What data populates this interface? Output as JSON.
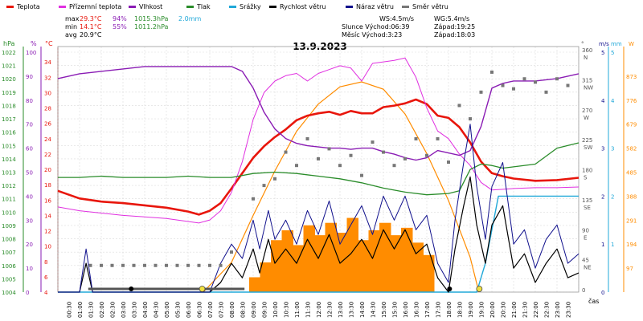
{
  "chart_data": {
    "type": "line",
    "title": "13.9.2023",
    "xlabel": "čas",
    "legend": [
      {
        "name": "Teplota",
        "color": "#e8160c"
      },
      {
        "name": "Přízemní teplota",
        "color": "#e030e0"
      },
      {
        "name": "Vlhkost",
        "color": "#8a1cb4"
      },
      {
        "name": "Tlak",
        "color": "#2a8c2a"
      },
      {
        "name": "Srážky",
        "color": "#20a8d8"
      },
      {
        "name": "Rychlost větru",
        "color": "#000000"
      },
      {
        "name": "Náraz větru",
        "color": "#10108c"
      },
      {
        "name": "Směr větru",
        "color": "#777777"
      }
    ],
    "stats": {
      "max_label": "max",
      "min_label": "min",
      "avg_label": "avg",
      "max_temp": "29.3°C",
      "max_hum": "94%",
      "max_press": "1015.3hPa",
      "max_rain": "2.0mm",
      "min_temp": "14.1°C",
      "min_hum": "55%",
      "min_press": "1011.2hPa",
      "avg_temp": "20.9°C"
    },
    "astro": {
      "ws": "WS:4.5m/s",
      "wg": "WG:5.4m/s",
      "sun_rise": "Slunce Východ:06:39",
      "sun_set": "Západ:19:25",
      "moon_rise": "Měsíc Východ:3:23",
      "moon_set": "Západ:18:03"
    },
    "axes": {
      "hpa": {
        "unit": "hPa",
        "ticks": [
          "1022",
          "1021",
          "1020",
          "1019",
          "1018",
          "1017",
          "1016",
          "1015",
          "1014",
          "1013",
          "1012",
          "1011",
          "1010",
          "1009",
          "1008",
          "1007",
          "1006",
          "1005",
          "1004"
        ]
      },
      "pct": {
        "unit": "%",
        "ticks": [
          "100",
          "90",
          "80",
          "70",
          "60",
          "50",
          "40",
          "30",
          "20",
          "10",
          "0"
        ]
      },
      "temp": {
        "unit": "°C",
        "range": [
          4,
          36
        ],
        "ticks": [
          "34",
          "32",
          "30",
          "28",
          "26",
          "24",
          "22",
          "20",
          "18",
          "16",
          "14",
          "12",
          "10",
          "8",
          "6",
          "4"
        ]
      },
      "dir": {
        "unit": "°",
        "range": [
          0,
          360
        ],
        "ticks": [
          [
            "360",
            "N"
          ],
          [
            "315",
            "NW"
          ],
          [
            "270",
            "W"
          ],
          [
            "225",
            "SW"
          ],
          [
            "180",
            "S"
          ],
          [
            "135",
            "SE"
          ],
          [
            "90",
            "E"
          ],
          [
            "45",
            "NE"
          ],
          [
            "0",
            ""
          ]
        ]
      },
      "ms": {
        "unit": "m/s",
        "range": [
          0,
          6
        ],
        "ticks": [
          "6",
          "5",
          "4",
          "3",
          "2",
          "1",
          "0"
        ]
      },
      "mm": {
        "unit": "mm",
        "range": [
          0,
          5
        ],
        "ticks": [
          "5",
          "4",
          "3",
          "2",
          "1"
        ]
      },
      "w": {
        "unit": "W",
        "ticks": [
          "873",
          "776",
          "679",
          "582",
          "485",
          "388",
          "291",
          "194",
          "97"
        ]
      },
      "x_range": [
        0,
        24
      ],
      "x_ticks": [
        "00:30",
        "01:00",
        "01:30",
        "02:00",
        "02:30",
        "03:00",
        "03:30",
        "04:00",
        "04:30",
        "05:00",
        "05:30",
        "06:00",
        "06:30",
        "07:00",
        "07:30",
        "08:00",
        "08:30",
        "09:00",
        "09:30",
        "10:00",
        "10:30",
        "11:00",
        "11:30",
        "12:00",
        "12:30",
        "13:00",
        "13:30",
        "14:00",
        "14:30",
        "15:00",
        "15:30",
        "16:00",
        "16:30",
        "17:00",
        "17:30",
        "18:00",
        "18:30",
        "19:00",
        "19:30",
        "20:00",
        "20:30",
        "21:00",
        "21:30",
        "22:00",
        "22:30",
        "23:00",
        "23:30"
      ]
    },
    "series": [
      {
        "name": "Teplota",
        "unit": "°C",
        "x": [
          0,
          1,
          2,
          3,
          4,
          5,
          6,
          6.5,
          7,
          7.5,
          8,
          8.5,
          9,
          9.5,
          10,
          10.5,
          11,
          11.5,
          12,
          12.5,
          13,
          13.5,
          14,
          14.5,
          15,
          15.5,
          16,
          16.5,
          17,
          17.5,
          18,
          18.5,
          19,
          19.5,
          20,
          20.5,
          21,
          22,
          23,
          24
        ],
        "y": [
          17.2,
          16.2,
          15.8,
          15.6,
          15.3,
          15,
          14.5,
          14.1,
          14.6,
          15.6,
          17.5,
          19.5,
          21.5,
          23,
          24.2,
          25.2,
          26.4,
          27,
          27.3,
          27.5,
          27.1,
          27.6,
          27.3,
          27.3,
          28.1,
          28.3,
          28.6,
          29.1,
          28.5,
          27,
          26.7,
          25.5,
          23.5,
          21,
          19.5,
          19.1,
          18.8,
          18.5,
          18.6,
          18.9
        ]
      },
      {
        "name": "Přízemní teplota",
        "unit": "°C",
        "x": [
          0,
          1,
          2,
          3,
          4,
          5,
          6,
          6.5,
          7,
          7.5,
          8,
          8.5,
          9,
          9.5,
          10,
          10.5,
          11,
          11.5,
          12,
          12.5,
          13,
          13.5,
          14,
          14.5,
          15,
          15.5,
          16,
          16.5,
          17,
          17.5,
          18,
          18.5,
          19,
          19.5,
          20,
          20.5,
          21,
          22,
          23,
          24
        ],
        "y": [
          15.1,
          14.6,
          14.3,
          14,
          13.8,
          13.6,
          13.2,
          13,
          13.4,
          14.6,
          17,
          21,
          26.5,
          30,
          31.5,
          32.2,
          32.5,
          31.5,
          32.5,
          33,
          33.5,
          33.2,
          31.5,
          33.8,
          34,
          34.2,
          34.5,
          32,
          28,
          25,
          24,
          22,
          20.5,
          18.3,
          17.3,
          17.4,
          17.5,
          17.6,
          17.6,
          17.7
        ]
      },
      {
        "name": "Vlhkost",
        "unit": "%",
        "x": [
          0,
          1,
          2,
          3,
          4,
          5,
          6,
          6.5,
          7,
          7.5,
          8,
          8.5,
          9,
          9.5,
          10,
          10.5,
          11,
          11.5,
          12,
          12.5,
          13,
          13.5,
          14,
          14.5,
          15,
          15.5,
          16,
          16.5,
          17,
          17.5,
          18,
          18.5,
          19,
          19.5,
          20,
          20.5,
          21,
          22,
          23,
          24
        ],
        "y": [
          89,
          91,
          92,
          93,
          94,
          94,
          94,
          94,
          94,
          94,
          94,
          92,
          85,
          75,
          68,
          64,
          62,
          61,
          60.5,
          60,
          60,
          59.5,
          60,
          60,
          58.5,
          57.5,
          56,
          55,
          56,
          59,
          58,
          57,
          59,
          69,
          85,
          87,
          88,
          88,
          89,
          91
        ]
      },
      {
        "name": "Tlak",
        "unit": "hPa",
        "x": [
          0,
          1,
          2,
          3,
          4,
          5,
          6,
          7,
          8,
          9,
          10,
          11,
          12,
          13,
          14,
          15,
          16,
          17,
          18,
          18.5,
          19,
          19.5,
          20,
          20.5,
          21,
          22,
          23,
          24
        ],
        "y": [
          1012.6,
          1012.6,
          1012.7,
          1012.6,
          1012.6,
          1012.6,
          1012.7,
          1012.6,
          1012.6,
          1012.9,
          1013.0,
          1012.9,
          1012.7,
          1012.5,
          1012.2,
          1011.8,
          1011.5,
          1011.3,
          1011.4,
          1011.6,
          1013.2,
          1013.6,
          1013.5,
          1013.3,
          1013.4,
          1013.6,
          1014.8,
          1015.2
        ]
      },
      {
        "name": "Srážky",
        "unit": "mm",
        "x": [
          0,
          19.3,
          19.7,
          20.0,
          20.3,
          24
        ],
        "y": [
          0,
          0,
          0.6,
          1.3,
          2.0,
          2.0
        ]
      },
      {
        "name": "Rychlost větru",
        "unit": "m/s",
        "x": [
          0,
          1,
          1.3,
          1.6,
          2,
          3,
          4,
          5,
          6,
          7,
          7.5,
          8,
          8.5,
          9,
          9.3,
          9.7,
          10,
          10.5,
          11,
          11.5,
          12,
          12.5,
          13,
          13.5,
          14,
          14.5,
          15,
          15.5,
          16,
          16.5,
          17,
          17.5,
          18,
          18.3,
          18.7,
          19,
          19.3,
          19.7,
          20,
          20.5,
          21,
          21.5,
          22,
          22.5,
          23,
          23.5,
          24
        ],
        "y": [
          0,
          0,
          0.6,
          0,
          0,
          0,
          0,
          0,
          0,
          0,
          0.2,
          0.6,
          0.3,
          0.9,
          0.4,
          1.1,
          0.6,
          0.9,
          0.6,
          1.1,
          0.7,
          1.2,
          0.6,
          0.8,
          1.1,
          0.7,
          1.3,
          0.9,
          1.3,
          0.8,
          1.0,
          0.3,
          0,
          0.9,
          1.8,
          2.4,
          1.4,
          0.6,
          1.4,
          1.8,
          0.5,
          0.8,
          0.2,
          0.6,
          0.9,
          0.3,
          0.4
        ]
      },
      {
        "name": "Náraz větru",
        "unit": "m/s",
        "x": [
          0,
          1,
          1.3,
          1.6,
          2,
          3,
          4,
          5,
          6,
          7,
          7.5,
          8,
          8.5,
          9,
          9.3,
          9.7,
          10,
          10.5,
          11,
          11.5,
          12,
          12.5,
          13,
          13.5,
          14,
          14.5,
          15,
          15.5,
          16,
          16.5,
          17,
          17.5,
          18,
          18.3,
          18.7,
          19,
          19.3,
          19.7,
          20,
          20.5,
          21,
          21.5,
          22,
          22.5,
          23,
          23.5,
          24
        ],
        "y": [
          0,
          0,
          0.9,
          0,
          0,
          0,
          0,
          0,
          0,
          0,
          0.6,
          1.0,
          0.7,
          1.5,
          0.9,
          1.7,
          1.1,
          1.5,
          1.0,
          1.7,
          1.2,
          1.9,
          1.0,
          1.4,
          1.8,
          1.2,
          2.0,
          1.5,
          2.0,
          1.3,
          1.6,
          0.6,
          0.2,
          1.5,
          2.7,
          3.5,
          2.2,
          1.1,
          2.2,
          2.7,
          1.0,
          1.3,
          0.5,
          1.1,
          1.4,
          0.6,
          0.8
        ]
      },
      {
        "name": "Směr větru",
        "unit": "°",
        "x": [
          1.5,
          2,
          2.5,
          3,
          3.5,
          4,
          4.5,
          5,
          5.5,
          6,
          6.5,
          7,
          7.5,
          8,
          9,
          9.5,
          10,
          10.5,
          11,
          11.5,
          12,
          12.5,
          13,
          13.5,
          14,
          14.5,
          15,
          15.5,
          16,
          16.5,
          17,
          17.5,
          18,
          18.5,
          19,
          19.5,
          20,
          20.5,
          21,
          21.5,
          22,
          22.5,
          23,
          23.5
        ],
        "y": [
          40,
          40,
          40,
          40,
          40,
          40,
          40,
          40,
          40,
          40,
          40,
          40,
          40,
          60,
          140,
          160,
          170,
          210,
          190,
          230,
          200,
          215,
          190,
          205,
          175,
          225,
          210,
          190,
          200,
          230,
          205,
          230,
          195,
          280,
          260,
          300,
          330,
          310,
          305,
          320,
          315,
          300,
          320,
          310
        ]
      }
    ],
    "solar": {
      "name": "Sluneční záření",
      "unit": "W",
      "x": [
        6.7,
        8,
        9,
        10,
        11,
        12,
        13,
        14,
        15,
        16,
        17,
        18,
        19,
        19.4
      ],
      "y": [
        0,
        120,
        310,
        490,
        650,
        760,
        830,
        850,
        820,
        720,
        560,
        370,
        140,
        0
      ]
    },
    "solar_bars": {
      "unit": "W",
      "x": [
        9.0,
        9.5,
        10.0,
        10.5,
        11.0,
        11.5,
        12.0,
        12.5,
        13.0,
        13.5,
        14.0,
        14.5,
        15.0,
        15.5,
        16.0,
        16.5,
        17.0
      ],
      "y": [
        60,
        120,
        210,
        250,
        190,
        270,
        230,
        280,
        240,
        300,
        210,
        250,
        280,
        230,
        260,
        200,
        150
      ]
    },
    "grid": true
  }
}
